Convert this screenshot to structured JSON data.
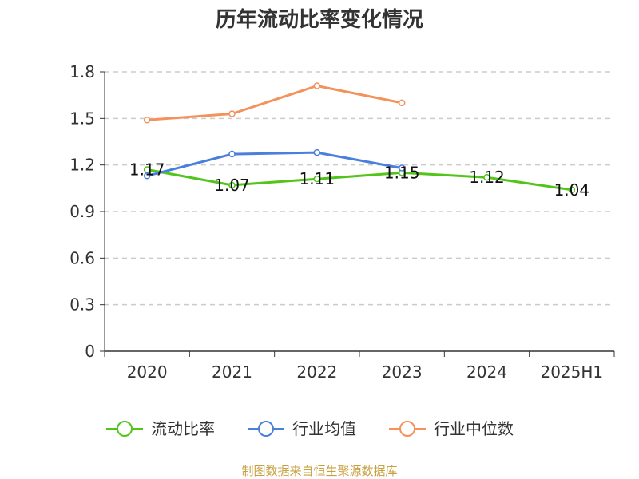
{
  "chart_data": {
    "type": "line",
    "title": "历年流动比率变化情况",
    "categories": [
      "2020",
      "2021",
      "2022",
      "2023",
      "2024",
      "2025H1"
    ],
    "ylim": [
      0,
      1.8
    ],
    "yticks": [
      "0",
      "0.3",
      "0.6",
      "0.9",
      "1.2",
      "1.5",
      "1.8"
    ],
    "grid": true,
    "legend_position": "bottom",
    "series": [
      {
        "name": "流动比率",
        "color": "#52c41a",
        "values": [
          1.17,
          1.07,
          1.11,
          1.15,
          1.12,
          1.04
        ],
        "labels": [
          "1.17",
          "1.07",
          "1.11",
          "1.15",
          "1.12",
          "1.04"
        ]
      },
      {
        "name": "行业均值",
        "color": "#4a7fdc",
        "values": [
          1.13,
          1.27,
          1.28,
          1.18,
          null,
          null
        ]
      },
      {
        "name": "行业中位数",
        "color": "#f5915a",
        "values": [
          1.49,
          1.53,
          1.71,
          1.6,
          null,
          null
        ]
      }
    ],
    "source": "制图数据来自恒生聚源数据库"
  }
}
